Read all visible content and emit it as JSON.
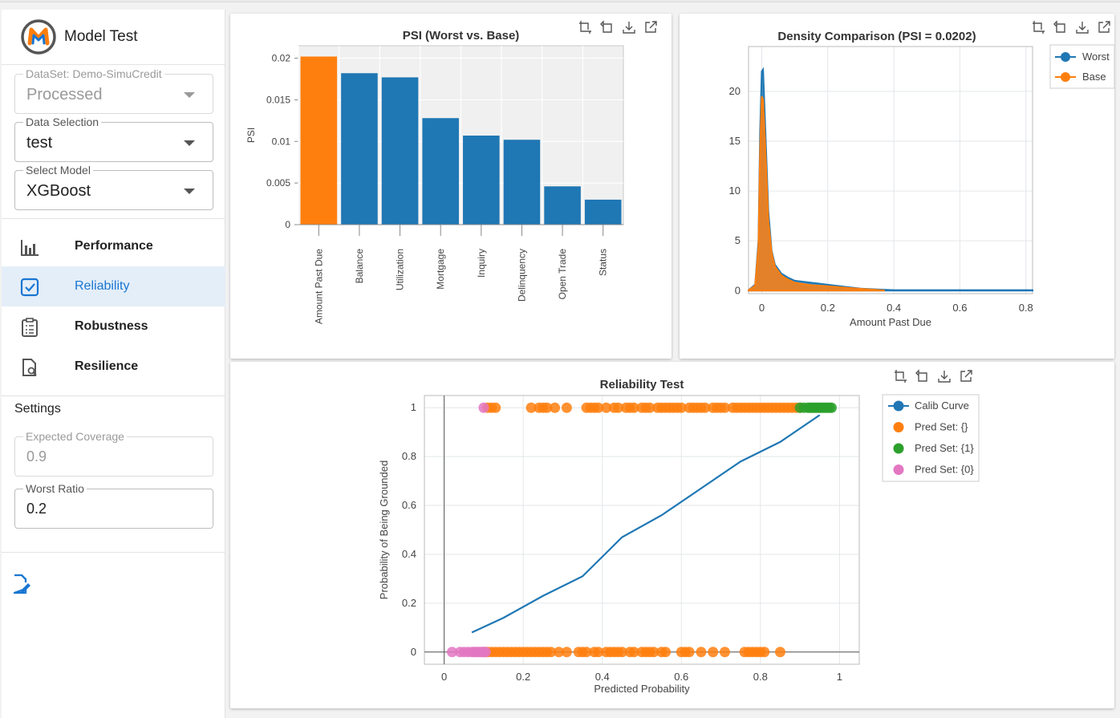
{
  "app": {
    "title": "Model Test",
    "logo_letter": "M"
  },
  "sidebar": {
    "dataset": {
      "label": "DataSet: Demo-SimuCredit",
      "value": "Processed"
    },
    "data_selection": {
      "label": "Data Selection",
      "value": "test"
    },
    "select_model": {
      "label": "Select Model",
      "value": "XGBoost"
    },
    "nav": [
      {
        "label": "Performance",
        "icon": "bar-chart-icon"
      },
      {
        "label": "Reliability",
        "icon": "checkbox-icon"
      },
      {
        "label": "Robustness",
        "icon": "clipboard-list-icon"
      },
      {
        "label": "Resilience",
        "icon": "file-search-icon"
      }
    ],
    "settings_title": "Settings",
    "expected_coverage": {
      "label": "Expected Coverage",
      "value": "0.9"
    },
    "worst_ratio": {
      "label": "Worst Ratio",
      "value": "0.2"
    }
  },
  "colors": {
    "blue": "#1f77b4",
    "orange": "#ff7f0e",
    "green": "#2ca02c",
    "pink": "#e377c2",
    "accent": "#1976d2"
  },
  "chart_data": [
    {
      "type": "bar",
      "title": "PSI (Worst vs. Base)",
      "xlabel": "",
      "ylabel": "PSI",
      "categories": [
        "Amount Past Due",
        "Balance",
        "Utilization",
        "Mortgage",
        "Inquiry",
        "Delinquency",
        "Open Trade",
        "Status"
      ],
      "values": [
        0.0202,
        0.0182,
        0.0177,
        0.0128,
        0.0107,
        0.0102,
        0.0046,
        0.003
      ],
      "highlight_index": 0,
      "ylim": [
        0,
        0.0215
      ],
      "yticks": [
        0,
        0.005,
        0.01,
        0.015,
        0.02
      ],
      "ytick_labels": [
        "0",
        "0.005",
        "0.01",
        "0.015",
        "0.02"
      ],
      "grid": true
    },
    {
      "type": "area",
      "title": "Density Comparison (PSI = 0.0202)",
      "xlabel": "Amount Past Due",
      "ylabel": "",
      "xlim": [
        -0.04,
        0.82
      ],
      "ylim": [
        -0.3,
        24.5
      ],
      "xticks": [
        0,
        0.2,
        0.4,
        0.6,
        0.8
      ],
      "yticks": [
        0,
        5,
        10,
        15,
        20
      ],
      "legend": "top-right",
      "grid": true,
      "series": [
        {
          "name": "Worst",
          "x": [
            -0.04,
            -0.02,
            -0.01,
            -0.005,
            0,
            0.004,
            0.01,
            0.02,
            0.03,
            0.04,
            0.06,
            0.08,
            0.1,
            0.15,
            0.2,
            0.25,
            0.3,
            0.35,
            0.4,
            0.5,
            0.6,
            0.7,
            0.8,
            0.82
          ],
          "y": [
            0.05,
            0.6,
            5,
            16,
            22,
            22.2,
            17,
            8,
            4,
            2.6,
            1.7,
            1.3,
            1.0,
            0.8,
            0.6,
            0.4,
            0.2,
            0.12,
            0.05,
            0.05,
            0.05,
            0.05,
            0.05,
            0.05
          ]
        },
        {
          "name": "Base",
          "x": [
            -0.04,
            -0.02,
            -0.01,
            -0.005,
            0,
            0.004,
            0.01,
            0.02,
            0.03,
            0.04,
            0.06,
            0.08,
            0.1,
            0.15,
            0.2,
            0.25,
            0.3,
            0.35,
            0.37
          ],
          "y": [
            0.05,
            0.5,
            4.5,
            14,
            19.5,
            19.2,
            15,
            7,
            3.8,
            2.4,
            1.5,
            1.1,
            0.8,
            0.55,
            0.45,
            0.3,
            0.18,
            0.07,
            0.03
          ]
        }
      ]
    },
    {
      "type": "scatter",
      "title": "Reliability Test",
      "xlabel": "Predicted Probability",
      "ylabel": "Probability of Being Grounded",
      "xlim": [
        -0.05,
        1.05
      ],
      "ylim": [
        -0.05,
        1.05
      ],
      "xticks": [
        0,
        0.2,
        0.4,
        0.6,
        0.8,
        1
      ],
      "yticks": [
        0,
        0.2,
        0.4,
        0.6,
        0.8,
        1
      ],
      "legend": "top-right",
      "grid": true,
      "calib_curve": {
        "name": "Calib Curve",
        "x": [
          0.07,
          0.15,
          0.25,
          0.35,
          0.45,
          0.55,
          0.65,
          0.75,
          0.85,
          0.95
        ],
        "y": [
          0.08,
          0.14,
          0.23,
          0.31,
          0.47,
          0.56,
          0.67,
          0.78,
          0.86,
          0.97
        ]
      },
      "scatter_series": [
        {
          "name": "Pred Set: {}",
          "y": 1,
          "x": [
            0.11,
            0.12,
            0.13,
            0.22,
            0.24,
            0.25,
            0.26,
            0.28,
            0.31,
            0.36,
            0.37,
            0.38,
            0.39,
            0.41,
            0.43,
            0.44,
            0.46,
            0.47,
            0.48,
            0.5,
            0.51,
            0.52,
            0.54,
            0.55,
            0.56,
            0.57,
            0.58,
            0.59,
            0.6,
            0.62,
            0.63,
            0.64,
            0.65,
            0.66,
            0.68,
            0.69,
            0.7,
            0.71,
            0.73,
            0.74,
            0.75,
            0.76,
            0.77,
            0.78,
            0.79,
            0.8,
            0.81,
            0.82,
            0.83,
            0.84,
            0.85,
            0.86,
            0.87,
            0.88,
            0.89,
            0.9
          ]
        },
        {
          "name": "Pred Set: {}",
          "y": 0,
          "x": [
            0.1,
            0.11,
            0.12,
            0.13,
            0.14,
            0.15,
            0.16,
            0.17,
            0.18,
            0.19,
            0.2,
            0.21,
            0.22,
            0.23,
            0.24,
            0.25,
            0.26,
            0.27,
            0.29,
            0.31,
            0.34,
            0.35,
            0.36,
            0.38,
            0.39,
            0.41,
            0.42,
            0.43,
            0.44,
            0.45,
            0.47,
            0.48,
            0.5,
            0.51,
            0.52,
            0.53,
            0.55,
            0.56,
            0.6,
            0.61,
            0.62,
            0.65,
            0.68,
            0.71,
            0.76,
            0.77,
            0.78,
            0.79,
            0.8,
            0.81,
            0.85
          ]
        },
        {
          "name": "Pred Set: {1}",
          "y": 1,
          "x": [
            0.9,
            0.91,
            0.92,
            0.925,
            0.93,
            0.935,
            0.94,
            0.945,
            0.95,
            0.955,
            0.96,
            0.965,
            0.97,
            0.975,
            0.98
          ]
        },
        {
          "name": "Pred Set: {0}",
          "y": 0,
          "x": [
            0.02,
            0.04,
            0.05,
            0.06,
            0.07,
            0.075,
            0.08,
            0.085,
            0.09,
            0.095,
            0.1,
            0.105
          ]
        },
        {
          "name": "Pred Set: {0}",
          "y": 1,
          "x": [
            0.1
          ]
        }
      ]
    }
  ]
}
